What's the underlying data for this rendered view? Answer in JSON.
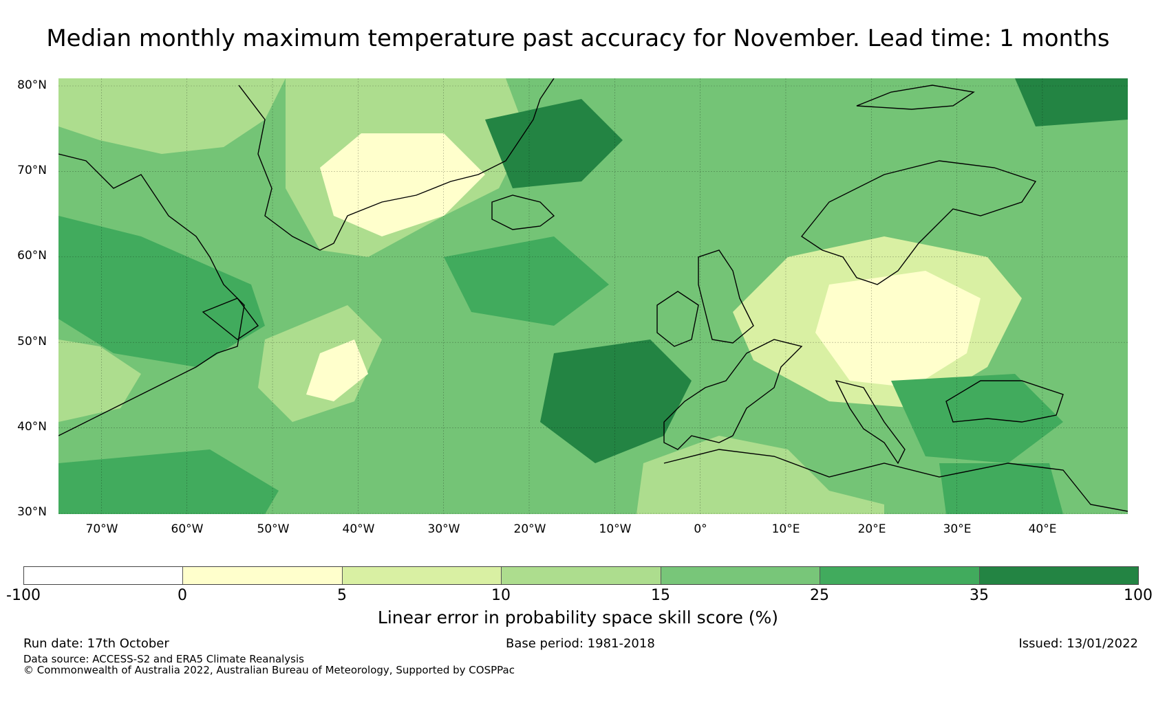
{
  "title": "Median monthly maximum temperature past accuracy for November. Lead time: 1 months",
  "map": {
    "lat_labels": [
      "80°N",
      "70°N",
      "60°N",
      "50°N",
      "40°N",
      "30°N"
    ],
    "lon_labels": [
      "70°W",
      "60°W",
      "50°W",
      "40°W",
      "30°W",
      "20°W",
      "10°W",
      "0°",
      "10°E",
      "20°E",
      "30°E",
      "40°E"
    ],
    "background_color": "#74c476"
  },
  "colorbar": {
    "title": "Linear error in probability space skill score (%)",
    "ticks": [
      "-100",
      "0",
      "5",
      "10",
      "15",
      "25",
      "35",
      "100"
    ],
    "colors": [
      "#ffffff",
      "#ffffcc",
      "#d9f0a3",
      "#addd8e",
      "#78c679",
      "#41ab5d",
      "#238443"
    ]
  },
  "footer": {
    "run_date": "Run date: 17th October",
    "base_period": "Base period: 1981-2018",
    "issued": "Issued: 13/01/2022",
    "data_source": "Data source: ACCESS-S2 and ERA5 Climate Reanalysis",
    "copyright": "© Commonwealth of Australia 2022, Australian Bureau of Meteorology, Supported by COSPPac"
  }
}
